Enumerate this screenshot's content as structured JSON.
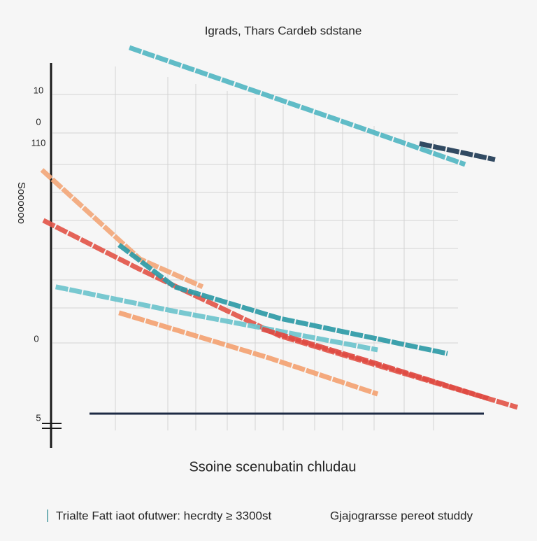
{
  "chart_data": {
    "type": "line",
    "title": "Igrads,  Thars Cardeb sdstane",
    "y_label": "Soooooo",
    "x_label": "Ssoine scenubatin chludau",
    "axis_labels": [
      "10",
      "0",
      "110",
      "0",
      "5"
    ],
    "footer": [
      "Trialte Fatt iaot ofutwer: hecrdty ≥ 3300st",
      "Gjajograrsse pereot studdy"
    ],
    "xlim": [
      0,
      100
    ],
    "ylim": [
      0,
      100
    ],
    "series": [
      {
        "color": "#52b6c2",
        "x": [
          18.4,
          61.8,
          89
        ],
        "values": [
          98.5,
          79.2,
          67
        ]
      },
      {
        "color": "#1f3b55",
        "x": [
          79.4,
          95.3
        ],
        "values": [
          72.6,
          68.3
        ]
      },
      {
        "color": "#f2a77a",
        "x": [
          0,
          20.6,
          33.8
        ],
        "values": [
          65.5,
          41.5,
          34
        ]
      },
      {
        "color": "#e2564a",
        "x": [
          0.3,
          20.6,
          50,
          79.4,
          100
        ],
        "values": [
          51.9,
          38.7,
          20.8,
          9.4,
          1.5
        ]
      },
      {
        "color": "#2e9aa6",
        "x": [
          16.2,
          27.9,
          50,
          85.3
        ],
        "values": [
          45.3,
          34,
          25.5,
          16
        ]
      },
      {
        "color": "#6cc3cc",
        "x": [
          2.9,
          27.9,
          70.6
        ],
        "values": [
          34,
          27.4,
          17
        ]
      },
      {
        "color": "#f3a272",
        "x": [
          16.2,
          47.1,
          70.6
        ],
        "values": [
          27,
          15.1,
          5.1
        ]
      },
      {
        "color": "#de4a42",
        "x": [
          46.3,
          70.6,
          94.1
        ],
        "values": [
          22.6,
          13.2,
          3.8
        ]
      }
    ]
  }
}
